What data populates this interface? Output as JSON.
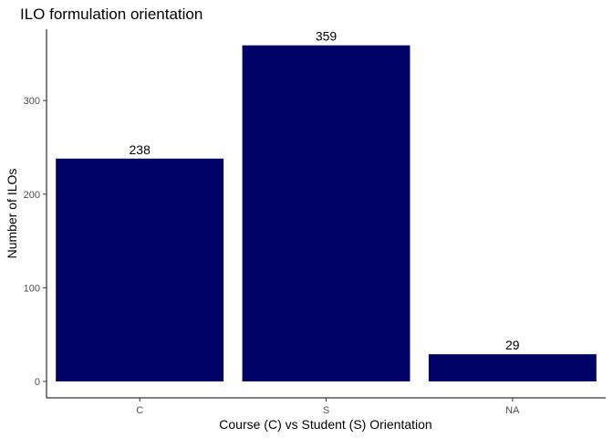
{
  "chart_data": {
    "type": "bar",
    "title": "ILO formulation orientation",
    "xlabel": "Course (C) vs Student (S) Orientation",
    "ylabel": "Number of ILOs",
    "categories": [
      "C",
      "S",
      "NA"
    ],
    "values": [
      238,
      359,
      29
    ],
    "yticks": [
      0,
      100,
      200,
      300
    ],
    "ylim": [
      0,
      376
    ],
    "bar_color": "#000066",
    "grid": false
  }
}
